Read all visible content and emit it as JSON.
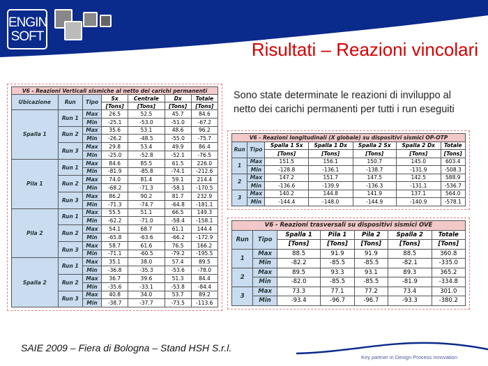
{
  "header": {
    "logo_text": "ENGIN SOFT",
    "title": "Risultati – Reazioni vincolari",
    "brand_color": "#0a2a8c",
    "title_color": "#d40000"
  },
  "description": "Sono state determinate le reazioni di inviluppo al netto dei carichi permanenti per tutti i run eseguiti",
  "footer": {
    "event": "SAIE 2009 – Fiera di Bologna – Stand HSH S.r.l.",
    "tagline": "Key partner in Design Process Innovation"
  },
  "table_vertical": {
    "title": "V6 - Reazioni Verticali sismiche al netto dei carichi permanenti",
    "headers": [
      "Ubicazione",
      "Run",
      "Tipo",
      "Sx",
      "Centrale",
      "Dx",
      "Totale"
    ],
    "unit": "[Tons]",
    "groups": [
      {
        "loc": "Spalla 1",
        "runs": [
          {
            "run": "Run 1",
            "max": [
              "26.5",
              "52.5",
              "45.7",
              "84.6"
            ],
            "min": [
              "-25.1",
              "-53.0",
              "-51.0",
              "-67.2"
            ]
          },
          {
            "run": "Run 2",
            "max": [
              "35.6",
              "53.1",
              "48.6",
              "96.2"
            ],
            "min": [
              "-26.2",
              "-48.5",
              "-55.0",
              "-75.7"
            ]
          },
          {
            "run": "Run 3",
            "max": [
              "29.8",
              "53.4",
              "49.9",
              "86.4"
            ],
            "min": [
              "-25.0",
              "-52.8",
              "-52.1",
              "-76.5"
            ]
          }
        ]
      },
      {
        "loc": "Pila 1",
        "runs": [
          {
            "run": "Run 1",
            "max": [
              "84.6",
              "85.5",
              "61.5",
              "226.0"
            ],
            "min": [
              "-81.9",
              "-85.8",
              "-74.1",
              "-212.6"
            ]
          },
          {
            "run": "Run 2",
            "max": [
              "74.0",
              "81.4",
              "59.1",
              "214.4"
            ],
            "min": [
              "-68.2",
              "-71.3",
              "-58.1",
              "-170.5"
            ]
          },
          {
            "run": "Run 3",
            "max": [
              "86.2",
              "90.2",
              "81.7",
              "232.9"
            ],
            "min": [
              "-71.3",
              "-74.7",
              "-64.8",
              "-181.1"
            ]
          }
        ]
      },
      {
        "loc": "Pila 2",
        "runs": [
          {
            "run": "Run 1",
            "max": [
              "55.5",
              "51.1",
              "66.5",
              "149.3"
            ],
            "min": [
              "-62.2",
              "-71.0",
              "-58.4",
              "-158.1"
            ]
          },
          {
            "run": "Run 2",
            "max": [
              "54.1",
              "68.7",
              "61.1",
              "144.4"
            ],
            "min": [
              "-65.8",
              "-63.6",
              "-66.2",
              "-172.9"
            ]
          },
          {
            "run": "Run 3",
            "max": [
              "58.7",
              "61.6",
              "76.5",
              "166.2"
            ],
            "min": [
              "-71.1",
              "-60.5",
              "-79.2",
              "-195.5"
            ]
          }
        ]
      },
      {
        "loc": "Spalla 2",
        "runs": [
          {
            "run": "Run 1",
            "max": [
              "35.1",
              "38.0",
              "57.4",
              "89.5"
            ],
            "min": [
              "-36.8",
              "-35.3",
              "-53.6",
              "-78.0"
            ]
          },
          {
            "run": "Run 2",
            "max": [
              "36.7",
              "39.6",
              "51.3",
              "84.4"
            ],
            "min": [
              "-35.6",
              "-33.1",
              "-53.8",
              "-84.4"
            ]
          },
          {
            "run": "Run 3",
            "max": [
              "40.8",
              "34.0",
              "53.7",
              "89.2"
            ],
            "min": [
              "-38.7",
              "-37.7",
              "-73.5",
              "-113.6"
            ]
          }
        ]
      }
    ]
  },
  "table_long": {
    "title": "V6 - Reazioni longitudinali (X globale) su dispositivi sismici OP-OTP",
    "headers": [
      "Run",
      "Tipo",
      "Spalla 1 Sx",
      "Spalla 1 Dx",
      "Spalla 2 Sx",
      "Spalla 2 Dx",
      "Totale"
    ],
    "unit": "[Tons]",
    "runs": [
      {
        "run": "1",
        "max": [
          "151.5",
          "156.1",
          "150.7",
          "145.0",
          "603.4"
        ],
        "min": [
          "-128.8",
          "-136.1",
          "-138.7",
          "-131.9",
          "-508.3"
        ]
      },
      {
        "run": "2",
        "max": [
          "147.2",
          "151.7",
          "147.5",
          "142.5",
          "588.9"
        ],
        "min": [
          "-136.6",
          "-139.9",
          "-136.3",
          "-131.1",
          "-536.7"
        ]
      },
      {
        "run": "3",
        "max": [
          "140.2",
          "144.8",
          "141.9",
          "137.1",
          "564.0"
        ],
        "min": [
          "-144.4",
          "-148.0",
          "-144.9",
          "-140.9",
          "-578.1"
        ]
      }
    ]
  },
  "table_trans": {
    "title": "V6 - Reazioni trasversali su dispositivi sismici OVE",
    "headers": [
      "Run",
      "Tipo",
      "Spalla 1",
      "Pila 1",
      "Pila 2",
      "Spalla 2",
      "Totale"
    ],
    "unit": "[Tons]",
    "runs": [
      {
        "run": "1",
        "max": [
          "88.5",
          "91.9",
          "91.9",
          "88.5",
          "360.8"
        ],
        "min": [
          "-82.2",
          "-85.5",
          "-85.5",
          "-82.1",
          "-335.0"
        ]
      },
      {
        "run": "2",
        "max": [
          "89.5",
          "93.3",
          "93.1",
          "89.3",
          "365.2"
        ],
        "min": [
          "-82.0",
          "-85.5",
          "-85.5",
          "-81.9",
          "-334.8"
        ]
      },
      {
        "run": "3",
        "max": [
          "73.3",
          "77.1",
          "77.2",
          "73.4",
          "301.0"
        ],
        "min": [
          "-93.4",
          "-96.7",
          "-96.7",
          "-93.3",
          "-380.2"
        ]
      }
    ]
  },
  "labels": {
    "max": "Max",
    "min": "Min"
  }
}
